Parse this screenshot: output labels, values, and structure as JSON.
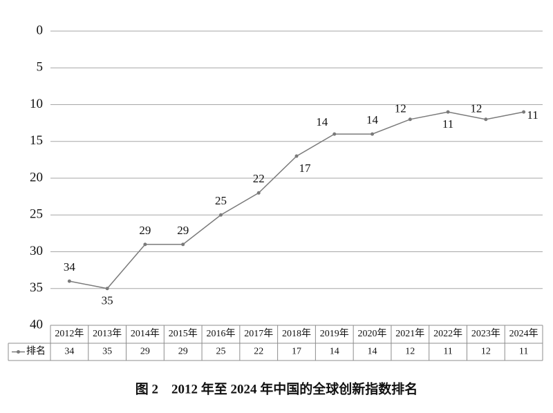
{
  "chart_data": {
    "type": "line",
    "title": "图 2　2012 年至 2024 年中国的全球创新指数排名",
    "categories": [
      "2012年",
      "2013年",
      "2014年",
      "2015年",
      "2016年",
      "2017年",
      "2018年",
      "2019年",
      "2020年",
      "2021年",
      "2022年",
      "2023年",
      "2024年"
    ],
    "series": [
      {
        "name": "排名",
        "color": "#7a7a7a",
        "values": [
          34,
          35,
          29,
          29,
          25,
          22,
          17,
          14,
          14,
          12,
          11,
          12,
          11
        ]
      }
    ],
    "ylim": [
      40,
      0
    ],
    "yticks": [
      0,
      5,
      10,
      15,
      20,
      25,
      30,
      35,
      40
    ],
    "grid": true,
    "data_table": true
  }
}
